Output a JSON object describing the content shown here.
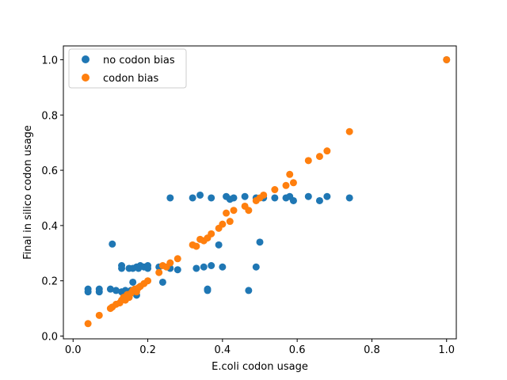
{
  "chart_data": {
    "type": "scatter",
    "title": "",
    "xlabel": "E.coli codon usage",
    "ylabel": "Final in silico codon usage",
    "xlim": [
      -0.026,
      1.026
    ],
    "ylim": [
      -0.01,
      1.05
    ],
    "xticks": [
      0.0,
      0.2,
      0.4,
      0.6,
      0.8,
      1.0
    ],
    "xtick_labels": [
      "0.0",
      "0.2",
      "0.4",
      "0.6",
      "0.8",
      "1.0"
    ],
    "yticks": [
      0.0,
      0.2,
      0.4,
      0.6,
      0.8,
      1.0
    ],
    "ytick_labels": [
      "0.0",
      "0.2",
      "0.4",
      "0.6",
      "0.8",
      "1.0"
    ],
    "grid": false,
    "legend_position": "top-left",
    "series": [
      {
        "name": "no codon bias",
        "color": "#1f77b4",
        "points": [
          [
            0.04,
            0.17
          ],
          [
            0.04,
            0.16
          ],
          [
            0.07,
            0.17
          ],
          [
            0.07,
            0.16
          ],
          [
            0.1,
            0.17
          ],
          [
            0.105,
            0.333
          ],
          [
            0.115,
            0.165
          ],
          [
            0.13,
            0.255
          ],
          [
            0.13,
            0.245
          ],
          [
            0.13,
            0.16
          ],
          [
            0.14,
            0.165
          ],
          [
            0.15,
            0.245
          ],
          [
            0.155,
            0.165
          ],
          [
            0.16,
            0.195
          ],
          [
            0.16,
            0.245
          ],
          [
            0.17,
            0.25
          ],
          [
            0.17,
            0.148
          ],
          [
            0.175,
            0.245
          ],
          [
            0.18,
            0.255
          ],
          [
            0.19,
            0.25
          ],
          [
            0.2,
            0.255
          ],
          [
            0.2,
            0.245
          ],
          [
            0.23,
            0.25
          ],
          [
            0.24,
            0.195
          ],
          [
            0.26,
            0.245
          ],
          [
            0.26,
            0.5
          ],
          [
            0.28,
            0.24
          ],
          [
            0.32,
            0.5
          ],
          [
            0.33,
            0.245
          ],
          [
            0.34,
            0.51
          ],
          [
            0.35,
            0.25
          ],
          [
            0.36,
            0.165
          ],
          [
            0.36,
            0.17
          ],
          [
            0.37,
            0.255
          ],
          [
            0.37,
            0.5
          ],
          [
            0.39,
            0.33
          ],
          [
            0.4,
            0.25
          ],
          [
            0.41,
            0.505
          ],
          [
            0.42,
            0.495
          ],
          [
            0.43,
            0.5
          ],
          [
            0.46,
            0.505
          ],
          [
            0.47,
            0.165
          ],
          [
            0.49,
            0.25
          ],
          [
            0.49,
            0.5
          ],
          [
            0.5,
            0.34
          ],
          [
            0.51,
            0.5
          ],
          [
            0.54,
            0.5
          ],
          [
            0.57,
            0.5
          ],
          [
            0.58,
            0.505
          ],
          [
            0.59,
            0.49
          ],
          [
            0.63,
            0.505
          ],
          [
            0.66,
            0.49
          ],
          [
            0.68,
            0.505
          ],
          [
            0.74,
            0.5
          ],
          [
            1.0,
            1.0
          ]
        ]
      },
      {
        "name": "codon bias",
        "color": "#ff7f0e",
        "points": [
          [
            0.04,
            0.045
          ],
          [
            0.07,
            0.075
          ],
          [
            0.1,
            0.1
          ],
          [
            0.105,
            0.105
          ],
          [
            0.115,
            0.115
          ],
          [
            0.125,
            0.12
          ],
          [
            0.13,
            0.13
          ],
          [
            0.135,
            0.14
          ],
          [
            0.14,
            0.13
          ],
          [
            0.145,
            0.15
          ],
          [
            0.15,
            0.14
          ],
          [
            0.155,
            0.155
          ],
          [
            0.16,
            0.165
          ],
          [
            0.165,
            0.17
          ],
          [
            0.17,
            0.16
          ],
          [
            0.175,
            0.175
          ],
          [
            0.18,
            0.18
          ],
          [
            0.19,
            0.19
          ],
          [
            0.2,
            0.2
          ],
          [
            0.23,
            0.23
          ],
          [
            0.24,
            0.255
          ],
          [
            0.25,
            0.25
          ],
          [
            0.26,
            0.265
          ],
          [
            0.28,
            0.28
          ],
          [
            0.32,
            0.33
          ],
          [
            0.33,
            0.325
          ],
          [
            0.34,
            0.35
          ],
          [
            0.35,
            0.345
          ],
          [
            0.36,
            0.355
          ],
          [
            0.37,
            0.37
          ],
          [
            0.39,
            0.39
          ],
          [
            0.4,
            0.405
          ],
          [
            0.41,
            0.445
          ],
          [
            0.42,
            0.415
          ],
          [
            0.43,
            0.455
          ],
          [
            0.46,
            0.47
          ],
          [
            0.47,
            0.455
          ],
          [
            0.49,
            0.49
          ],
          [
            0.5,
            0.5
          ],
          [
            0.51,
            0.51
          ],
          [
            0.54,
            0.53
          ],
          [
            0.57,
            0.545
          ],
          [
            0.58,
            0.585
          ],
          [
            0.59,
            0.555
          ],
          [
            0.63,
            0.635
          ],
          [
            0.66,
            0.65
          ],
          [
            0.68,
            0.67
          ],
          [
            0.74,
            0.74
          ],
          [
            1.0,
            1.0
          ]
        ]
      }
    ]
  }
}
